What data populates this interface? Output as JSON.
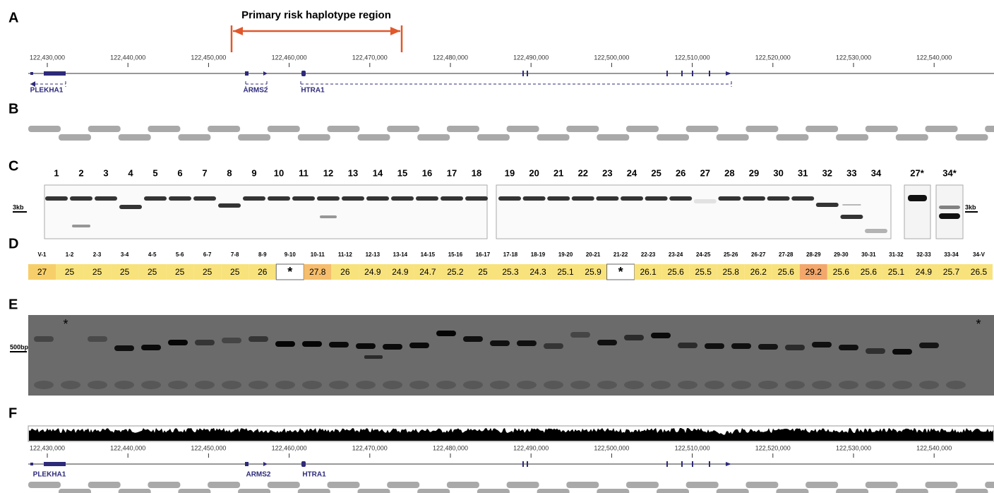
{
  "panel_labels": [
    "A",
    "B",
    "C",
    "D",
    "E",
    "F"
  ],
  "panel_a": {
    "region_title": "Primary risk haplotype region",
    "coordinates": [
      "122,430,000",
      "122,440,000",
      "122,450,000",
      "122,460,000",
      "122,470,000",
      "122,480,000",
      "122,490,000",
      "122,500,000",
      "122,510,000",
      "122,520,000",
      "122,530,000",
      "122,540,000"
    ],
    "genes": [
      "PLEKHA1",
      "ARMS2",
      "HTRA1"
    ]
  },
  "panel_c": {
    "lanes": [
      "1",
      "2",
      "3",
      "4",
      "5",
      "6",
      "7",
      "8",
      "9",
      "10",
      "11",
      "12",
      "13",
      "14",
      "15",
      "16",
      "17",
      "18",
      "19",
      "20",
      "21",
      "22",
      "23",
      "24",
      "25",
      "26",
      "27",
      "28",
      "29",
      "30",
      "31",
      "32",
      "33",
      "34"
    ],
    "extra_lanes": [
      "27*",
      "34*"
    ],
    "size_markers": [
      "3kb",
      "3kb"
    ]
  },
  "panel_d": {
    "amplicons": [
      "V-1",
      "1-2",
      "2-3",
      "3-4",
      "4-5",
      "5-6",
      "6-7",
      "7-8",
      "8-9",
      "9-10",
      "10-11",
      "11-12",
      "12-13",
      "13-14",
      "14-15",
      "15-16",
      "16-17",
      "17-18",
      "18-19",
      "19-20",
      "20-21",
      "21-22",
      "22-23",
      "23-24",
      "24-25",
      "25-26",
      "26-27",
      "27-28",
      "28-29",
      "29-30",
      "30-31",
      "31-32",
      "32-33",
      "33-34",
      "34-V"
    ],
    "values": [
      27,
      25,
      25,
      25,
      25,
      25,
      25,
      25,
      26,
      "*",
      27.8,
      26,
      24.9,
      24.9,
      24.7,
      25.2,
      25,
      25.3,
      24.3,
      25.1,
      25.9,
      "*",
      26.1,
      25.6,
      25.5,
      25.8,
      26.2,
      25.6,
      29.2,
      25.6,
      25.6,
      25.1,
      24.9,
      25.7,
      26.5
    ]
  },
  "panel_e": {
    "size_marker": "500bp",
    "failed_marks": [
      "*",
      "*"
    ]
  },
  "panel_f": {
    "coordinates": [
      "122,430,000",
      "122,440,000",
      "122,450,000",
      "122,460,000",
      "122,470,000",
      "122,480,000",
      "122,490,000",
      "122,500,000",
      "122,510,000",
      "122,520,000",
      "122,530,000",
      "122,540,000"
    ],
    "genes": [
      "PLEKHA1",
      "ARMS2",
      "HTRA1"
    ]
  }
}
